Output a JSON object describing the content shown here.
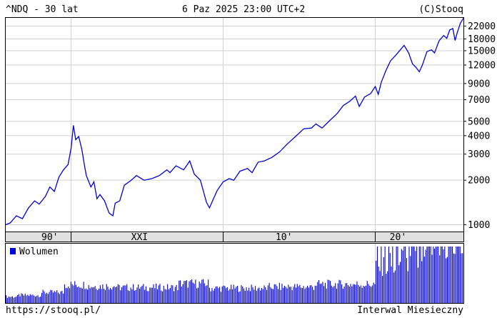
{
  "header": {
    "left": "^NDQ - 30 lat",
    "center": "6 Paz 2025 23:00 UTC+2",
    "right": "(C)Stooq"
  },
  "footer": {
    "left": "https://stooq.pl/",
    "right": "Interwal Miesieczny"
  },
  "colors": {
    "line": "#0000dd",
    "volume": "#0000dd",
    "grid": "#d0d0d0",
    "band": "#e0e0e0"
  },
  "chart_data": [
    {
      "type": "line",
      "scale": "log",
      "ylim": [
        900,
        25000
      ],
      "yticks": [
        "22000",
        "18000",
        "15000",
        "12000",
        "9000",
        "7000",
        "5000",
        "4000",
        "3000",
        "2000",
        "1000"
      ],
      "ytick_values": [
        22000,
        18000,
        15000,
        12000,
        9000,
        7000,
        5000,
        4000,
        3000,
        2000,
        1000
      ],
      "x_band_labels": [
        "90'",
        "XXI",
        "10'",
        "20'"
      ],
      "x_band_years": [
        1998.6,
        2004.5,
        2014.0,
        2021.5
      ],
      "gridline_years": [
        2000,
        2010,
        2020
      ],
      "xlim": [
        1995.7,
        2025.8
      ],
      "x": [
        1995.7,
        1996.0,
        1996.4,
        1996.8,
        1997.2,
        1997.6,
        1997.9,
        1998.3,
        1998.6,
        1998.9,
        1999.2,
        1999.5,
        1999.8,
        2000.0,
        2000.15,
        2000.3,
        2000.5,
        2000.7,
        2000.9,
        2001.0,
        2001.3,
        2001.5,
        2001.7,
        2001.9,
        2002.2,
        2002.5,
        2002.75,
        2002.9,
        2003.2,
        2003.5,
        2003.9,
        2004.3,
        2004.8,
        2005.3,
        2005.8,
        2006.3,
        2006.5,
        2006.9,
        2007.4,
        2007.8,
        2008.1,
        2008.5,
        2008.9,
        2009.1,
        2009.3,
        2009.6,
        2010.0,
        2010.4,
        2010.7,
        2011.1,
        2011.6,
        2011.9,
        2012.3,
        2012.7,
        2013.2,
        2013.7,
        2014.2,
        2014.7,
        2015.3,
        2015.8,
        2016.1,
        2016.5,
        2017.0,
        2017.5,
        2017.9,
        2018.3,
        2018.7,
        2018.95,
        2019.3,
        2019.7,
        2020.0,
        2020.2,
        2020.4,
        2020.7,
        2021.0,
        2021.3,
        2021.6,
        2021.9,
        2022.2,
        2022.45,
        2022.7,
        2022.9,
        2023.1,
        2023.4,
        2023.7,
        2023.9,
        2024.2,
        2024.5,
        2024.7,
        2024.9,
        2025.1,
        2025.25,
        2025.4,
        2025.6,
        2025.8
      ],
      "values": [
        1000,
        1030,
        1150,
        1100,
        1300,
        1450,
        1380,
        1550,
        1800,
        1680,
        2100,
        2350,
        2550,
        3300,
        4700,
        3750,
        3950,
        3250,
        2450,
        2150,
        1800,
        1950,
        1500,
        1600,
        1450,
        1200,
        1150,
        1400,
        1450,
        1850,
        1980,
        2150,
        2000,
        2050,
        2150,
        2350,
        2250,
        2500,
        2350,
        2700,
        2200,
        2000,
        1420,
        1300,
        1450,
        1700,
        1950,
        2050,
        2000,
        2300,
        2400,
        2250,
        2650,
        2700,
        2850,
        3100,
        3500,
        3900,
        4450,
        4500,
        4800,
        4500,
        5050,
        5650,
        6400,
        6800,
        7400,
        6300,
        7300,
        7700,
        8600,
        7600,
        9200,
        11000,
        12800,
        13800,
        15000,
        16300,
        14500,
        12200,
        11500,
        10800,
        12000,
        14800,
        15200,
        14500,
        17500,
        19000,
        18200,
        20700,
        21200,
        17600,
        20000,
        23000,
        24900
      ]
    },
    {
      "type": "bar",
      "legend": "Wolumen",
      "xlim": [
        1995.7,
        2025.8
      ],
      "start_year": 1995.7,
      "months": 360,
      "segments": [
        {
          "to": 1996.5,
          "v": 18
        },
        {
          "to": 1998.0,
          "v": 22
        },
        {
          "to": 1999.5,
          "v": 30
        },
        {
          "to": 2001.0,
          "v": 52
        },
        {
          "to": 2003.0,
          "v": 48
        },
        {
          "to": 2007.0,
          "v": 44
        },
        {
          "to": 2009.0,
          "v": 55
        },
        {
          "to": 2013.0,
          "v": 42
        },
        {
          "to": 2016.0,
          "v": 46
        },
        {
          "to": 2020.0,
          "v": 53
        },
        {
          "to": 2021.5,
          "v": 100
        },
        {
          "to": 2023.5,
          "v": 110
        },
        {
          "to": 2025.75,
          "v": 150
        },
        {
          "to": 2025.9,
          "v": 30
        }
      ],
      "ylim": [
        0,
        160
      ]
    }
  ]
}
